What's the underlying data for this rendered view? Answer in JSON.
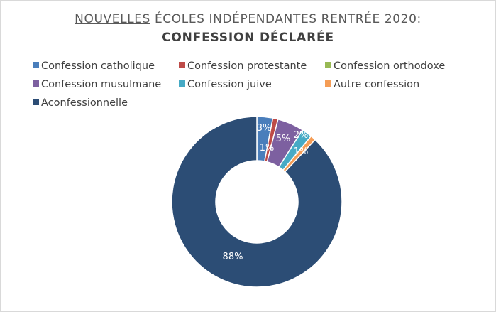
{
  "title_prefix": "NOUVELLES",
  "title_rest": " ÉCOLES INDÉPENDANTES RENTRÉE 2020:",
  "subtitle": "CONFESSION DÉCLARÉE",
  "chart_data": {
    "type": "pie",
    "donut": true,
    "legend_position": "top",
    "title": "NOUVELLES ÉCOLES INDÉPENDANTES RENTRÉE 2020:",
    "subtitle": "CONFESSION DÉCLARÉE",
    "categories": [
      "Confession catholique",
      "Confession protestante",
      "Confession orthodoxe",
      "Confession musulmane",
      "Confession juive",
      "Autre confession",
      "Aconfessionnelle"
    ],
    "values": [
      3,
      1,
      0,
      5,
      2,
      1,
      88
    ],
    "labels": [
      "3%",
      "1%",
      "",
      "5%",
      "2%",
      "1%",
      "88%"
    ],
    "colors": [
      "#4a7ebb",
      "#be4b48",
      "#98b954",
      "#7d60a0",
      "#46aac5",
      "#f59d56",
      "#2c4d75"
    ]
  }
}
